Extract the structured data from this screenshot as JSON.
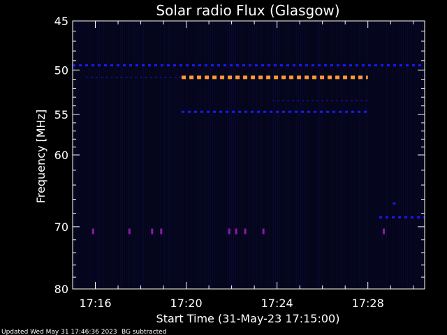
{
  "chart_data": {
    "type": "heatmap",
    "title": "Solar radio Flux (Glasgow)",
    "xlabel": "Start Time (31-May-23 17:15:00)",
    "ylabel": "Frequency [MHz]",
    "x_range_minutes": [
      15.0,
      30.5
    ],
    "y_range_mhz": [
      45,
      80
    ],
    "y_scale": "log",
    "x_ticks": [
      {
        "minute": 16,
        "label": "17:16"
      },
      {
        "minute": 20,
        "label": "17:20"
      },
      {
        "minute": 24,
        "label": "17:24"
      },
      {
        "minute": 28,
        "label": "17:28"
      }
    ],
    "y_ticks": [
      {
        "value": 45,
        "label": "45"
      },
      {
        "value": 50,
        "label": "50"
      },
      {
        "value": 55,
        "label": "55"
      },
      {
        "value": 60,
        "label": "60"
      },
      {
        "value": 70,
        "label": "70"
      },
      {
        "value": 80,
        "label": "80"
      }
    ],
    "colors": {
      "background": "#05051a",
      "strong": "#ff9933",
      "medium": "#1a1aff",
      "weak": "#10107a",
      "burst": "#8a1aa8",
      "axes": "#ffffff"
    },
    "emission_bands": [
      {
        "freq": 49.5,
        "t_start": 15.0,
        "t_end": 30.5,
        "level": "medium"
      },
      {
        "freq": 50.8,
        "t_start": 15.6,
        "t_end": 19.8,
        "level": "weak"
      },
      {
        "freq": 50.8,
        "t_start": 19.8,
        "t_end": 28.0,
        "level": "strong"
      },
      {
        "freq": 53.4,
        "t_start": 23.8,
        "t_end": 28.0,
        "level": "weak"
      },
      {
        "freq": 54.7,
        "t_start": 19.8,
        "t_end": 28.0,
        "level": "medium"
      },
      {
        "freq": 68.6,
        "t_start": 28.5,
        "t_end": 30.5,
        "level": "medium"
      },
      {
        "freq": 66.6,
        "t_start": 29.1,
        "t_end": 29.3,
        "level": "medium"
      }
    ],
    "burst_marks": [
      {
        "freq": 70.7,
        "minute": 15.9
      },
      {
        "freq": 70.7,
        "minute": 17.5
      },
      {
        "freq": 70.7,
        "minute": 18.5
      },
      {
        "freq": 70.7,
        "minute": 18.9
      },
      {
        "freq": 70.7,
        "minute": 21.9
      },
      {
        "freq": 70.7,
        "minute": 22.2
      },
      {
        "freq": 70.7,
        "minute": 22.6
      },
      {
        "freq": 70.7,
        "minute": 23.4
      },
      {
        "freq": 70.7,
        "minute": 28.7
      }
    ]
  },
  "footer": {
    "updated": "Updated Wed May 31 17:46:36 2023",
    "note": "BG subtracted"
  }
}
